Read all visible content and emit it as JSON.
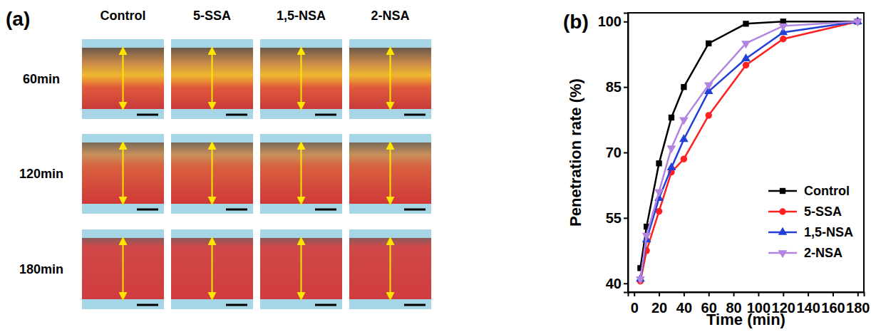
{
  "image_panel": {
    "label": "(a)",
    "columns": [
      "Control",
      "5-SSA",
      "1,5-NSA",
      "2-NSA"
    ],
    "rows": [
      "60min",
      "120min",
      "180min"
    ]
  },
  "chart_data": {
    "type": "line",
    "title": "(b)",
    "x_label": "Time (min)",
    "y_label": "Penetration rate (%)",
    "x": [
      5,
      10,
      20,
      30,
      40,
      60,
      90,
      120,
      180
    ],
    "series": [
      {
        "name": "Control",
        "color": "#000000",
        "marker": "square",
        "values": [
          43.5,
          53,
          67.5,
          78,
          85,
          95,
          99.5,
          100,
          100
        ]
      },
      {
        "name": "5-SSA",
        "color": "#ff2020",
        "marker": "circle",
        "values": [
          40.5,
          47.5,
          56.5,
          65.5,
          68.5,
          78.5,
          90,
          96,
          100
        ]
      },
      {
        "name": "1,5-NSA",
        "color": "#2040d8",
        "marker": "triangle-up",
        "values": [
          41,
          50,
          59.5,
          66.5,
          73,
          84,
          91.5,
          97.5,
          100
        ]
      },
      {
        "name": "2-NSA",
        "color": "#b285e0",
        "marker": "triangle-down",
        "values": [
          41,
          51,
          61,
          71,
          77.5,
          85.5,
          95,
          99,
          100
        ]
      }
    ],
    "xlim": [
      -5,
      185
    ],
    "xticks": [
      0,
      20,
      40,
      60,
      80,
      100,
      120,
      140,
      160,
      180
    ],
    "ylim": [
      38,
      102
    ],
    "yticks": [
      40,
      55,
      70,
      85,
      100
    ],
    "legend": "lower right",
    "grid": false
  }
}
